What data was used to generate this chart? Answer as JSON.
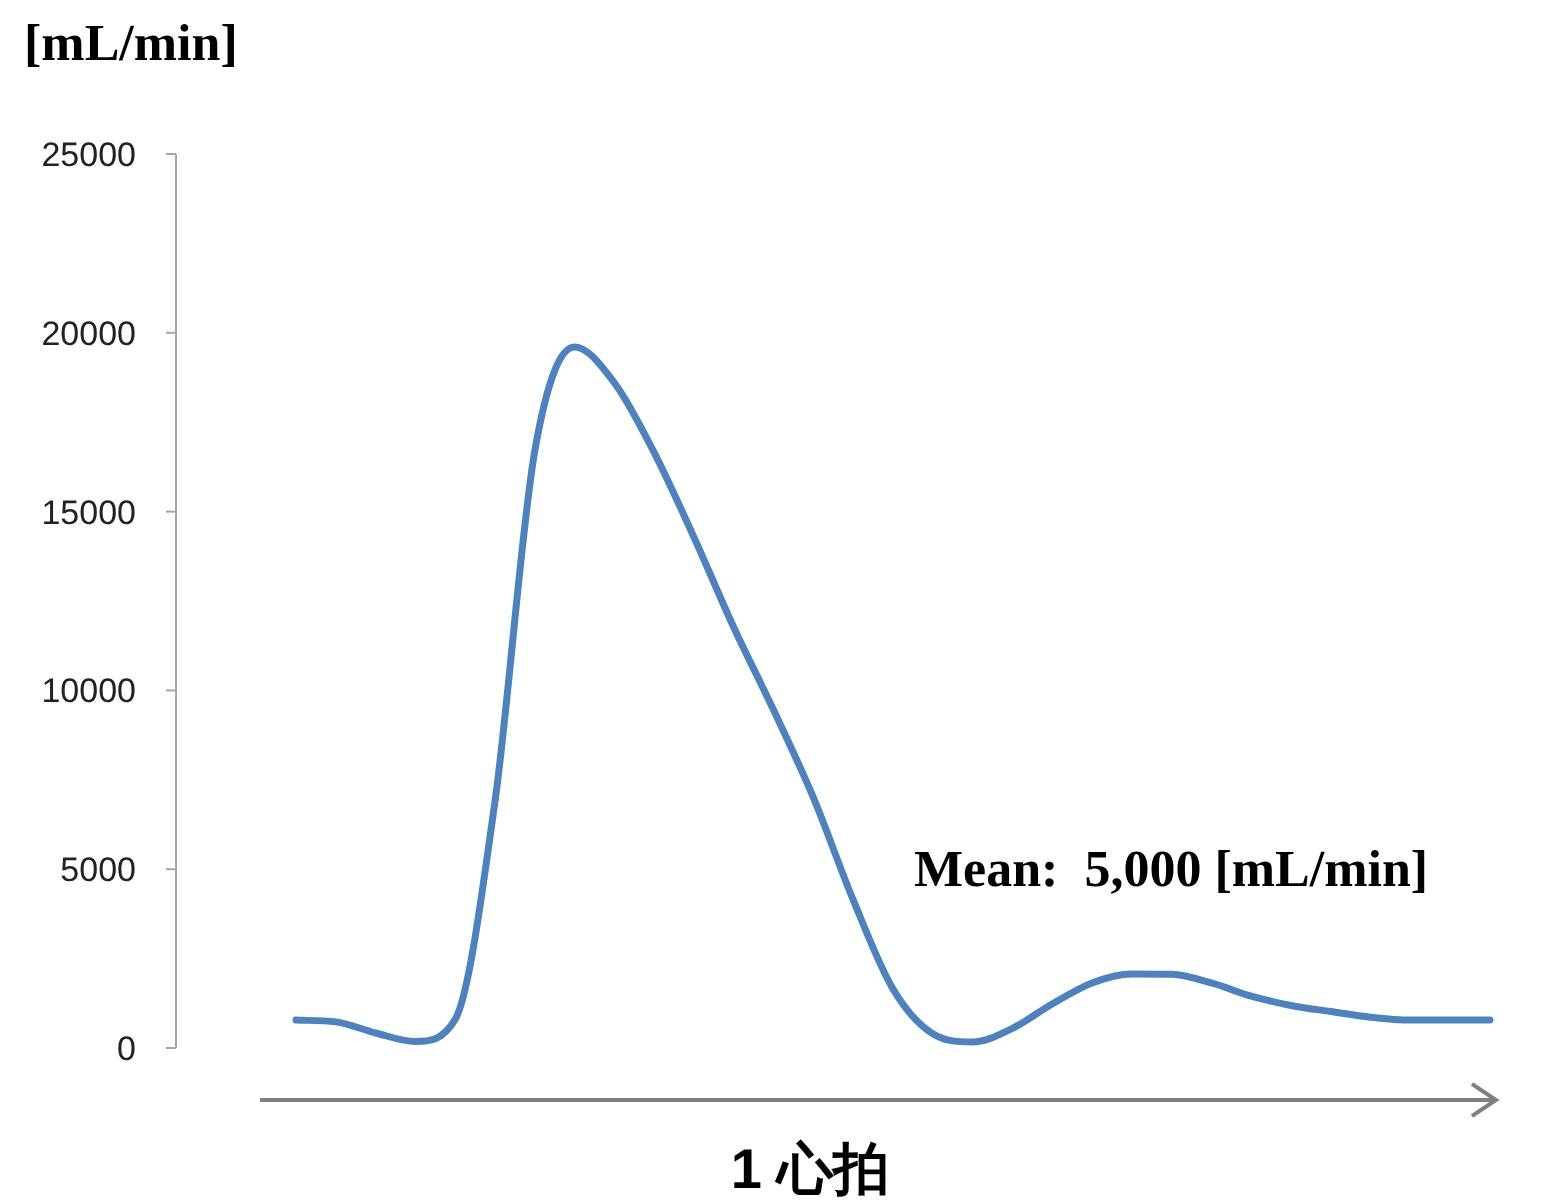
{
  "chart_data": {
    "type": "line",
    "ylabel": "[mL/min]",
    "xlabel": "1 心拍",
    "annotations": [
      "Mean:  5,000 [mL/min]"
    ],
    "categories": [
      null,
      null,
      null,
      null,
      null,
      null,
      null,
      null,
      null,
      null,
      null,
      null,
      null,
      null,
      null,
      null,
      null,
      null,
      null,
      null,
      null,
      null,
      null,
      null,
      null,
      null,
      null,
      null,
      null,
      null,
      null
    ],
    "series": [
      {
        "color": "#4f81bd",
        "values": [
          780,
          730,
          420,
          180,
          800,
          6900,
          16700,
          19600,
          18600,
          16650,
          14280,
          11760,
          9450,
          7000,
          4140,
          1650,
          400,
          170,
          550,
          1230,
          1820,
          2070,
          2060,
          1820,
          1450,
          1190,
          1020,
          860,
          780,
          780,
          780
        ]
      }
    ],
    "ylim": [
      0,
      25000
    ],
    "yticks": [
      0,
      5000,
      10000,
      15000,
      20000,
      25000
    ],
    "grid": false,
    "marker": "none",
    "line_style": "solid"
  }
}
